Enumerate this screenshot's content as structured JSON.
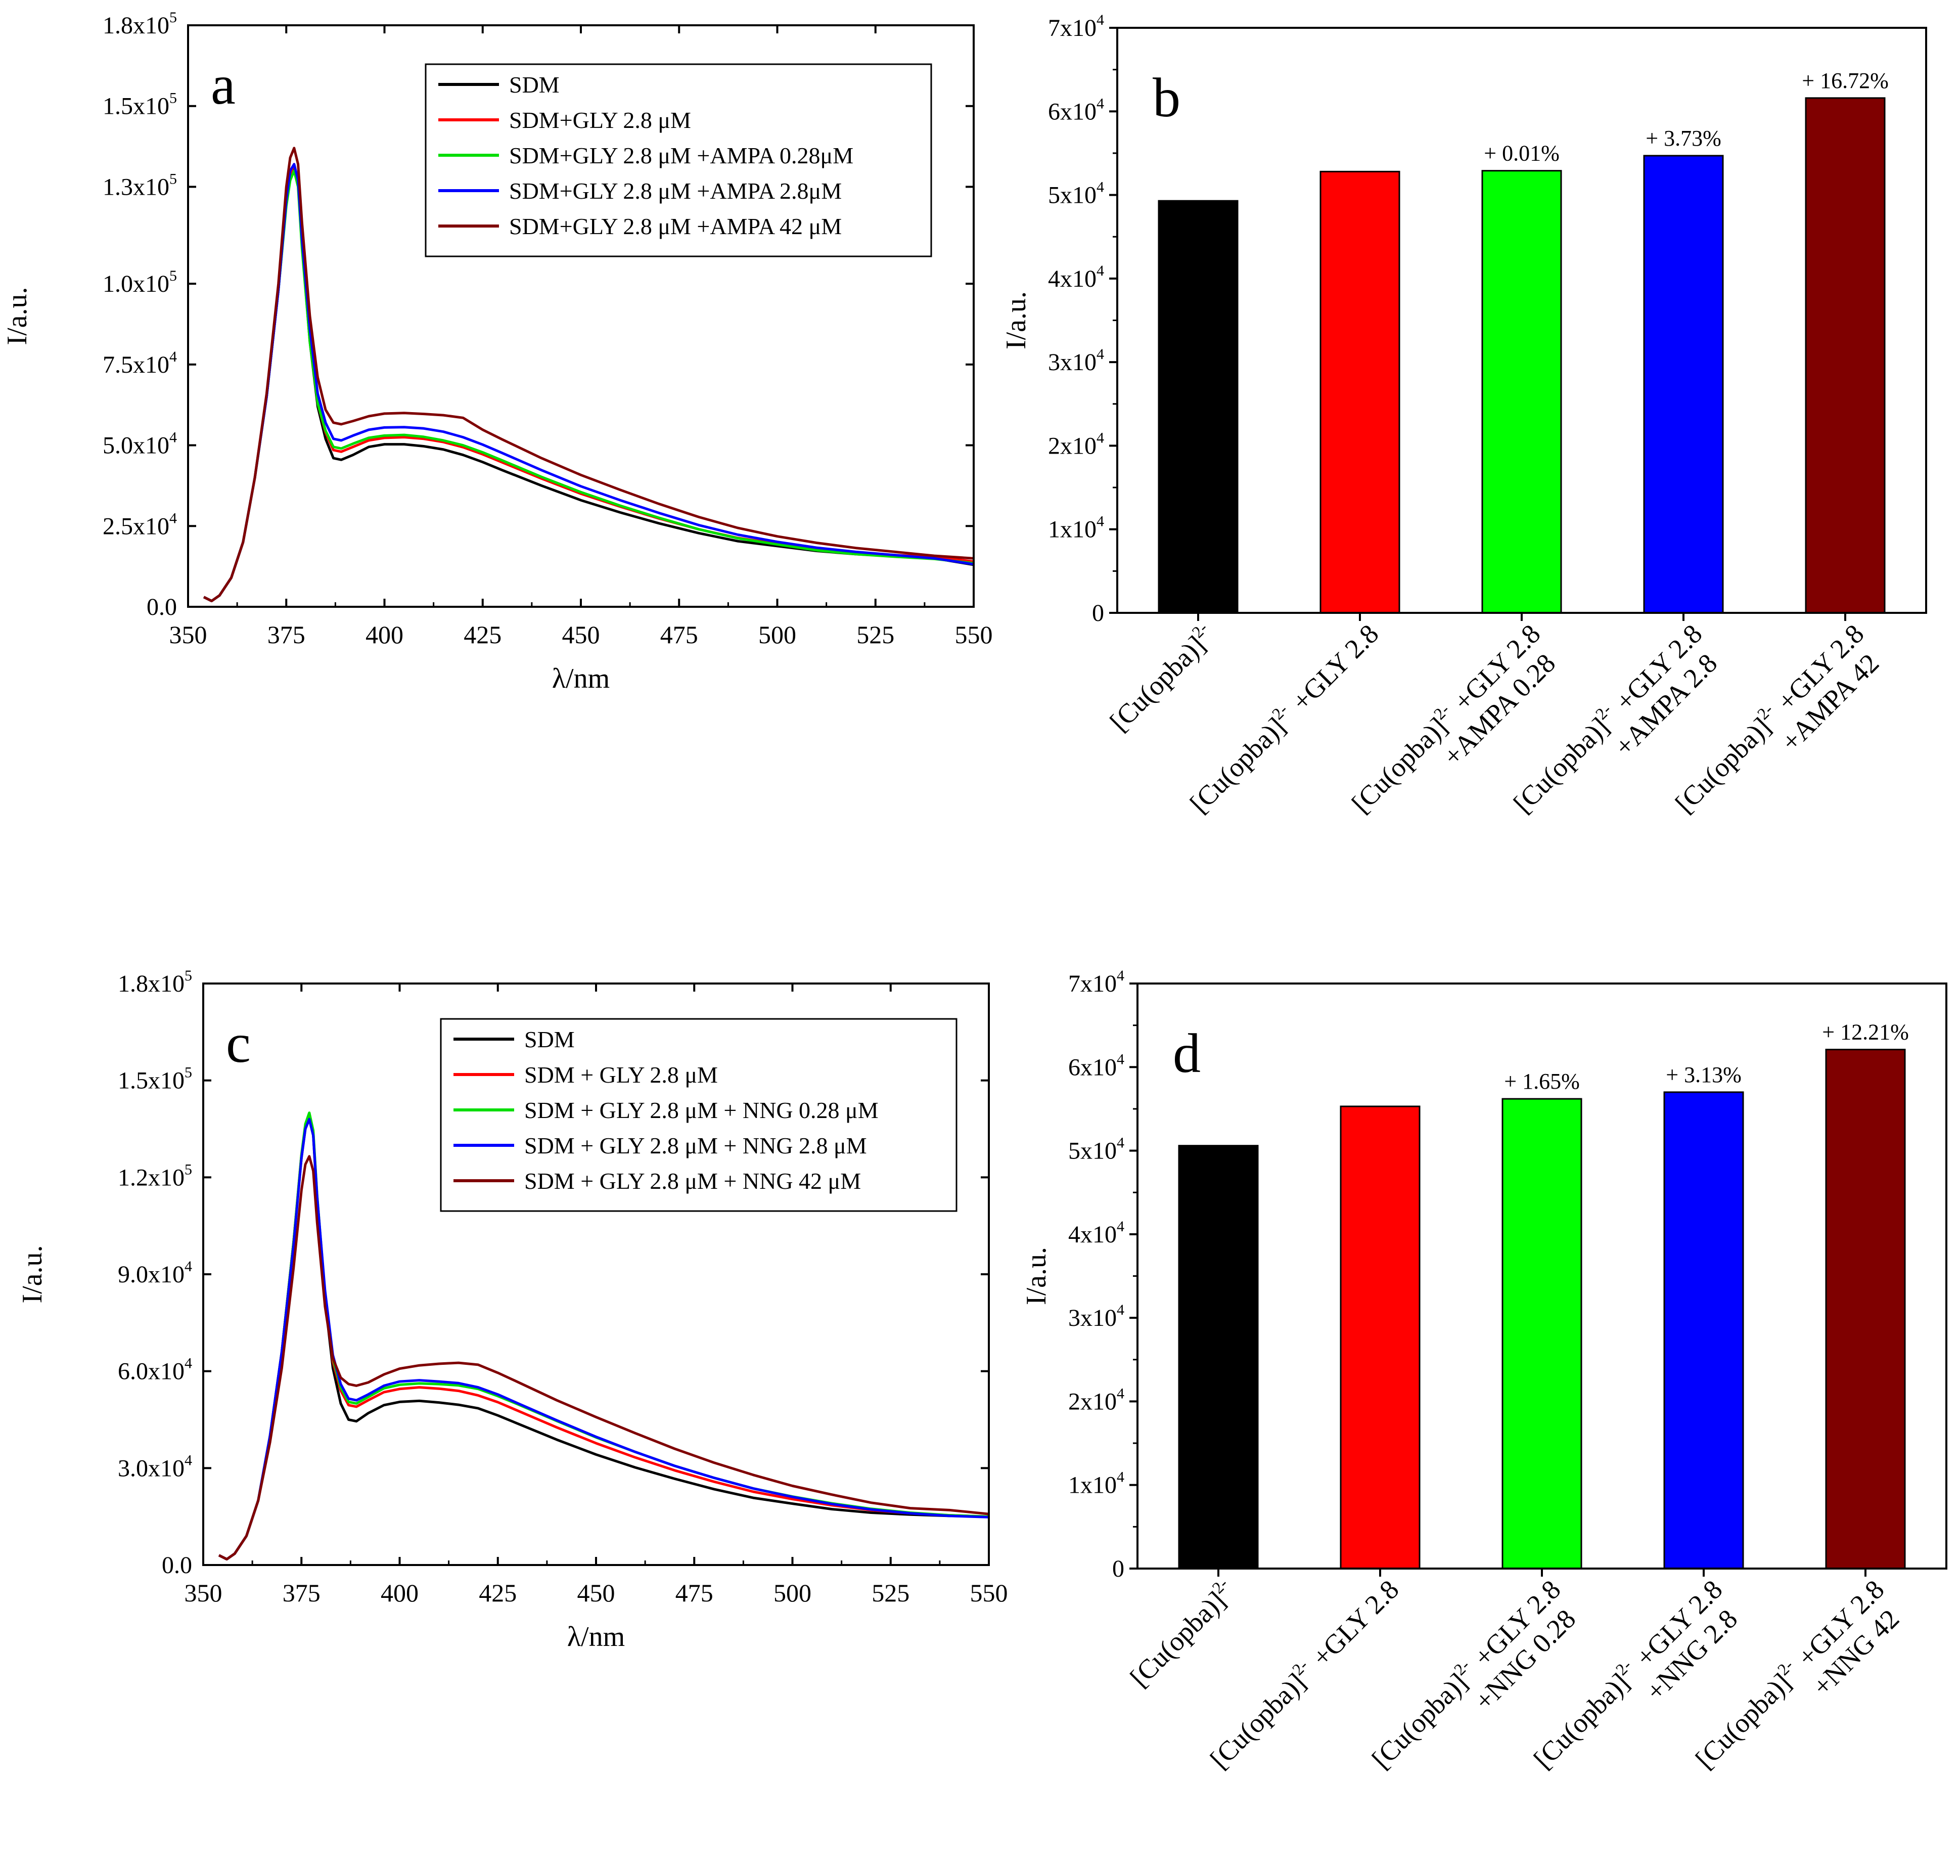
{
  "chart_data": [
    {
      "id": "a",
      "type": "line",
      "panel_letter": "a",
      "xlabel": "λ/nm",
      "ylabel": "I/a.u.",
      "xlim": [
        350,
        550
      ],
      "ylim": [
        0,
        180000
      ],
      "xticks": [
        350,
        375,
        400,
        425,
        450,
        475,
        500,
        525,
        550
      ],
      "yticks": [
        {
          "value": 0,
          "mant": "0.0",
          "exp": ""
        },
        {
          "value": 25000,
          "mant": "2.5x10",
          "exp": "4"
        },
        {
          "value": 50000,
          "mant": "5.0x10",
          "exp": "4"
        },
        {
          "value": 75000,
          "mant": "7.5x10",
          "exp": "4"
        },
        {
          "value": 100000,
          "mant": "1.0x10",
          "exp": "5"
        },
        {
          "value": 130000,
          "mant": "1.3x10",
          "exp": "5"
        },
        {
          "value": 155000,
          "mant": "1.5x10",
          "exp": "5"
        },
        {
          "value": 180000,
          "mant": "1.8x10",
          "exp": "5"
        }
      ],
      "x": [
        354,
        356,
        358,
        361,
        364,
        367,
        370,
        373,
        375,
        376,
        377,
        378,
        379,
        381,
        383,
        385,
        387,
        389,
        392,
        396,
        400,
        405,
        410,
        415,
        420,
        425,
        430,
        440,
        450,
        460,
        470,
        480,
        490,
        500,
        510,
        520,
        530,
        540,
        550
      ],
      "series": [
        {
          "name": "SDM",
          "color": "#000000",
          "values": [
            3000,
            1800,
            3500,
            9000,
            20000,
            40000,
            65000,
            98000,
            125000,
            133000,
            136000,
            131000,
            112000,
            82000,
            62000,
            52000,
            46000,
            45500,
            47000,
            49500,
            50300,
            50300,
            49700,
            48700,
            47000,
            44800,
            42300,
            37500,
            33000,
            29200,
            25800,
            22800,
            20300,
            18800,
            17300,
            16300,
            15600,
            15000,
            13000
          ]
        },
        {
          "name": "SDM+GLY 2.8 μM",
          "color": "#ff0000",
          "values": [
            3000,
            1800,
            3500,
            9000,
            20000,
            40000,
            65000,
            98000,
            125000,
            134000,
            137000,
            132000,
            113000,
            83000,
            63000,
            54000,
            48500,
            48000,
            49500,
            51500,
            52300,
            52500,
            52000,
            51000,
            49400,
            47200,
            44700,
            39700,
            35000,
            31000,
            27300,
            24000,
            21300,
            19500,
            17800,
            16700,
            16000,
            15500,
            14000
          ]
        },
        {
          "name": "SDM+GLY 2.8 μM +AMPA 0.28μM",
          "color": "#00dd00",
          "values": [
            3000,
            1800,
            3500,
            9000,
            20000,
            40000,
            65000,
            98000,
            124000,
            132000,
            135000,
            130000,
            111000,
            82000,
            63000,
            54500,
            49500,
            49000,
            50500,
            52300,
            53000,
            53200,
            52600,
            51500,
            50000,
            47800,
            45300,
            40200,
            35500,
            31300,
            27500,
            24000,
            21200,
            19300,
            17500,
            16300,
            15500,
            14800,
            13500
          ]
        },
        {
          "name": "SDM+GLY 2.8 μM +AMPA 2.8μM",
          "color": "#0000ff",
          "values": [
            3000,
            1800,
            3500,
            9000,
            20000,
            40000,
            65000,
            98000,
            126000,
            135000,
            137000,
            132000,
            114000,
            86000,
            66000,
            57000,
            52000,
            51500,
            53000,
            54800,
            55500,
            55600,
            55200,
            54200,
            52500,
            50200,
            47600,
            42300,
            37300,
            33000,
            29000,
            25300,
            22300,
            20100,
            18300,
            17000,
            16000,
            15000,
            13200
          ]
        },
        {
          "name": "SDM+GLY 2.8 μM +AMPA 42 μM",
          "color": "#7f0000",
          "values": [
            3000,
            1800,
            3500,
            9000,
            20000,
            40000,
            66000,
            100000,
            130000,
            139000,
            142000,
            137000,
            119000,
            90000,
            71000,
            61000,
            57000,
            56500,
            57500,
            59000,
            59800,
            60000,
            59700,
            59300,
            58500,
            54800,
            51800,
            46000,
            40800,
            36200,
            31800,
            27800,
            24400,
            21800,
            19800,
            18200,
            17000,
            15800,
            15000
          ]
        }
      ]
    },
    {
      "id": "b",
      "type": "bar",
      "panel_letter": "b",
      "ylabel": "I/a.u.",
      "ylim": [
        0,
        70000
      ],
      "yticks": [
        {
          "value": 0,
          "mant": "0",
          "exp": ""
        },
        {
          "value": 10000,
          "mant": "1x10",
          "exp": "4"
        },
        {
          "value": 20000,
          "mant": "2x10",
          "exp": "4"
        },
        {
          "value": 30000,
          "mant": "3x10",
          "exp": "4"
        },
        {
          "value": 40000,
          "mant": "4x10",
          "exp": "4"
        },
        {
          "value": 50000,
          "mant": "5x10",
          "exp": "4"
        },
        {
          "value": 60000,
          "mant": "6x10",
          "exp": "4"
        },
        {
          "value": 70000,
          "mant": "7x10",
          "exp": "4"
        }
      ],
      "bars": [
        {
          "line1": "[Cu(opba)]2-",
          "line2": "",
          "value": 49300,
          "color": "#000000",
          "annotation": ""
        },
        {
          "line1": "[Cu(opba)]2- +GLY 2.8",
          "line2": "",
          "value": 52800,
          "color": "#ff0000",
          "annotation": ""
        },
        {
          "line1": "[Cu(opba)]2- +GLY 2.8",
          "line2": "+AMPA 0.28",
          "value": 52900,
          "color": "#00ff00",
          "annotation": "+ 0.01%"
        },
        {
          "line1": "[Cu(opba)]2- +GLY 2.8",
          "line2": "+AMPA 2.8",
          "value": 54700,
          "color": "#0000ff",
          "annotation": "+ 3.73%"
        },
        {
          "line1": "[Cu(opba)]2- +GLY 2.8",
          "line2": "+AMPA 42",
          "value": 61600,
          "color": "#7f0000",
          "annotation": "+ 16.72%"
        }
      ]
    },
    {
      "id": "c",
      "type": "line",
      "panel_letter": "c",
      "xlabel": "λ/nm",
      "ylabel": "I/a.u.",
      "xlim": [
        350,
        550
      ],
      "ylim": [
        0,
        180000
      ],
      "xticks": [
        350,
        375,
        400,
        425,
        450,
        475,
        500,
        525,
        550
      ],
      "yticks": [
        {
          "value": 0,
          "mant": "0.0",
          "exp": ""
        },
        {
          "value": 30000,
          "mant": "3.0x10",
          "exp": "4"
        },
        {
          "value": 60000,
          "mant": "6.0x10",
          "exp": "4"
        },
        {
          "value": 90000,
          "mant": "9.0x10",
          "exp": "4"
        },
        {
          "value": 120000,
          "mant": "1.2x10",
          "exp": "5"
        },
        {
          "value": 150000,
          "mant": "1.5x10",
          "exp": "5"
        },
        {
          "value": 180000,
          "mant": "1.8x10",
          "exp": "5"
        }
      ],
      "x": [
        354,
        356,
        358,
        361,
        364,
        367,
        370,
        373,
        375,
        376,
        377,
        378,
        379,
        381,
        383,
        385,
        387,
        389,
        392,
        396,
        400,
        405,
        410,
        415,
        420,
        425,
        430,
        440,
        450,
        460,
        470,
        480,
        490,
        500,
        510,
        520,
        530,
        540,
        550
      ],
      "series": [
        {
          "name": "SDM",
          "color": "#000000",
          "values": [
            3000,
            1800,
            3500,
            9000,
            20000,
            40000,
            66000,
            100000,
            126000,
            135000,
            138000,
            133000,
            113000,
            82000,
            61000,
            50000,
            45000,
            44500,
            47000,
            49500,
            50500,
            50800,
            50300,
            49600,
            48500,
            46300,
            43800,
            38800,
            34200,
            30200,
            26700,
            23500,
            20800,
            19000,
            17300,
            16200,
            15600,
            15200,
            15000
          ]
        },
        {
          "name": "SDM + GLY 2.8 μM",
          "color": "#ff0000",
          "values": [
            3000,
            1800,
            3500,
            9000,
            20000,
            40000,
            66000,
            100000,
            127000,
            136000,
            139500,
            134000,
            114000,
            84000,
            63000,
            54000,
            49500,
            49000,
            51000,
            53500,
            54500,
            55000,
            54600,
            53900,
            52500,
            50400,
            47800,
            42600,
            37700,
            33300,
            29300,
            25800,
            22700,
            20400,
            18500,
            17000,
            16000,
            15400,
            15000
          ]
        },
        {
          "name": "SDM + GLY 2.8 μM + NNG 0.28 μM",
          "color": "#00dd00",
          "values": [
            3000,
            1800,
            3500,
            9000,
            20000,
            40000,
            66000,
            100000,
            127000,
            136500,
            140000,
            134500,
            114500,
            84000,
            64000,
            55000,
            50500,
            50000,
            52000,
            54700,
            55800,
            56200,
            56000,
            55600,
            54500,
            52300,
            49800,
            44600,
            39500,
            35000,
            30700,
            27000,
            23700,
            21200,
            19100,
            17400,
            16200,
            15400,
            15000
          ]
        },
        {
          "name": "SDM + GLY 2.8 μM + NNG 2.8 μM",
          "color": "#0000ff",
          "values": [
            3000,
            1800,
            3500,
            9000,
            20000,
            40000,
            66000,
            99000,
            126000,
            135000,
            138000,
            133000,
            114000,
            85000,
            65000,
            56000,
            51500,
            51000,
            52800,
            55500,
            56800,
            57200,
            56800,
            56300,
            55000,
            52800,
            50100,
            44800,
            39700,
            35000,
            30700,
            27000,
            23700,
            21100,
            18900,
            17200,
            16000,
            15200,
            14800
          ]
        },
        {
          "name": "SDM + GLY 2.8 μM + NNG 42 μM",
          "color": "#7f0000",
          "values": [
            3000,
            1800,
            3500,
            9000,
            20000,
            38000,
            61000,
            92000,
            116000,
            124000,
            126500,
            122000,
            106000,
            80000,
            64000,
            58000,
            56000,
            55500,
            56500,
            59000,
            60800,
            61800,
            62300,
            62600,
            62000,
            59500,
            56700,
            51000,
            45800,
            40800,
            36000,
            31700,
            27900,
            24500,
            21800,
            19300,
            17600,
            17000,
            15800
          ]
        }
      ]
    },
    {
      "id": "d",
      "type": "bar",
      "panel_letter": "d",
      "ylabel": "I/a.u.",
      "ylim": [
        0,
        70000
      ],
      "yticks": [
        {
          "value": 0,
          "mant": "0",
          "exp": ""
        },
        {
          "value": 10000,
          "mant": "1x10",
          "exp": "4"
        },
        {
          "value": 20000,
          "mant": "2x10",
          "exp": "4"
        },
        {
          "value": 30000,
          "mant": "3x10",
          "exp": "4"
        },
        {
          "value": 40000,
          "mant": "4x10",
          "exp": "4"
        },
        {
          "value": 50000,
          "mant": "5x10",
          "exp": "4"
        },
        {
          "value": 60000,
          "mant": "6x10",
          "exp": "4"
        },
        {
          "value": 70000,
          "mant": "7x10",
          "exp": "4"
        }
      ],
      "bars": [
        {
          "line1": "[Cu(opba)]2-",
          "line2": "",
          "value": 50600,
          "color": "#000000",
          "annotation": ""
        },
        {
          "line1": "[Cu(opba)]2- +GLY 2.8",
          "line2": "",
          "value": 55300,
          "color": "#ff0000",
          "annotation": ""
        },
        {
          "line1": "[Cu(opba)]2- +GLY 2.8",
          "line2": "+NNG 0.28",
          "value": 56200,
          "color": "#00ff00",
          "annotation": "+ 1.65%"
        },
        {
          "line1": "[Cu(opba)]2- +GLY 2.8",
          "line2": "+NNG 2.8",
          "value": 57000,
          "color": "#0000ff",
          "annotation": "+ 3.13%"
        },
        {
          "line1": "[Cu(opba)]2- +GLY 2.8",
          "line2": "+NNG 42",
          "value": 62100,
          "color": "#7f0000",
          "annotation": "+ 12.21%"
        }
      ]
    }
  ]
}
